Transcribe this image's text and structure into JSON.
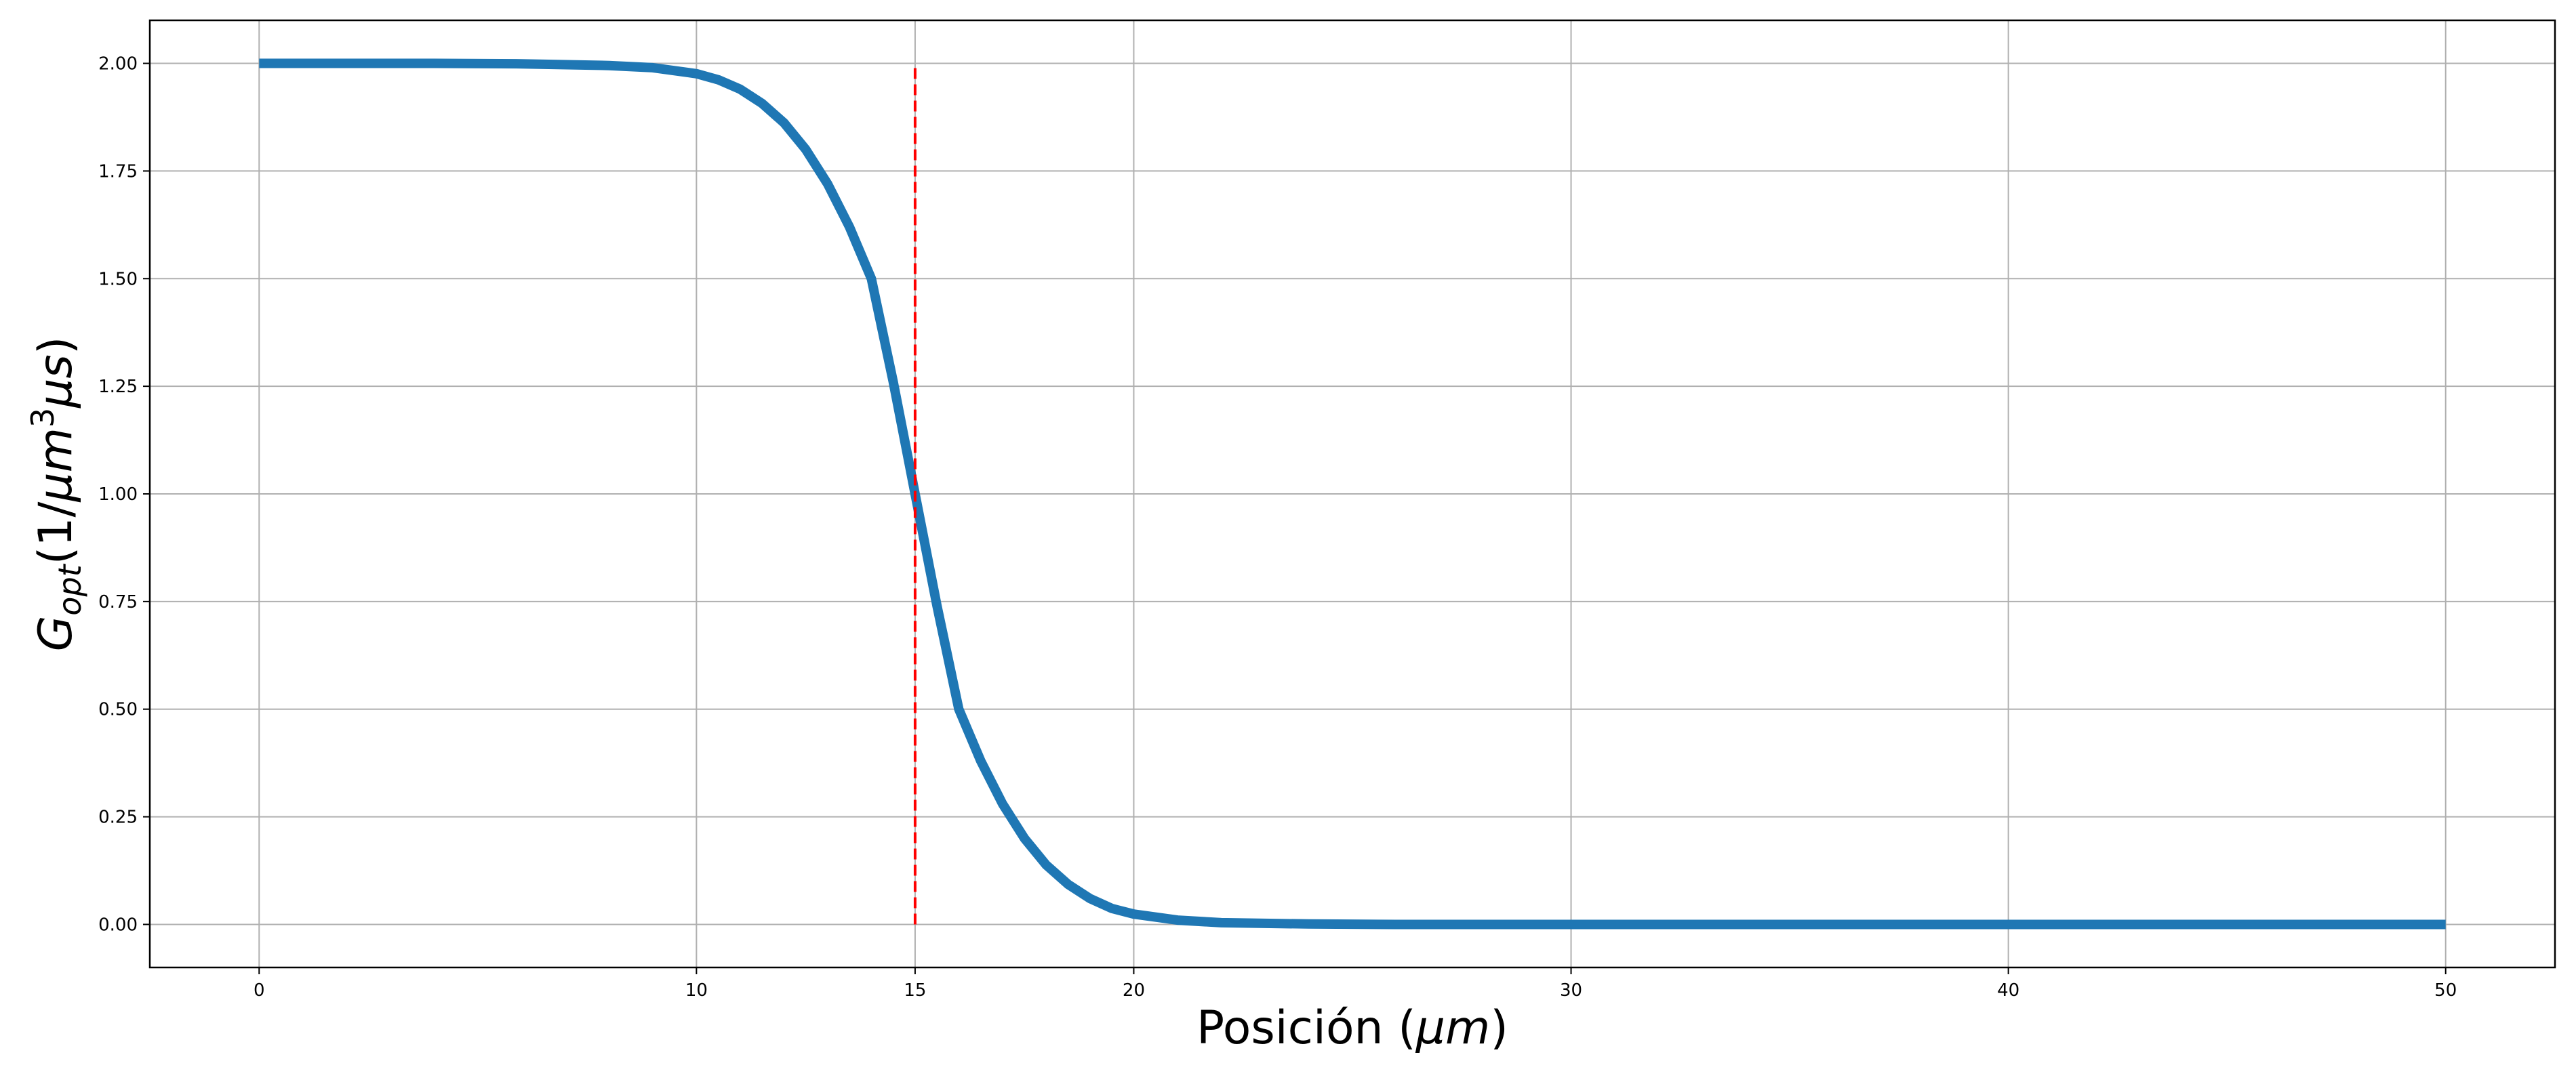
{
  "chart_data": {
    "type": "line",
    "title": "",
    "xlabel": {
      "prefix": "Posición (",
      "unit": "μm",
      "suffix": ")"
    },
    "ylabel": {
      "base": "G",
      "subscript": "opt",
      "unit_open": "(1/",
      "unit_var": "μm",
      "unit_sup": "3",
      "unit_var2": "μs",
      "unit_close": ")"
    },
    "xlim": [
      -2.5,
      52.5
    ],
    "ylim": [
      -0.1,
      2.1
    ],
    "xticks": [
      0,
      10,
      15,
      20,
      30,
      40,
      50
    ],
    "xtick_labels": [
      "0",
      "10",
      "15",
      "20",
      "30",
      "40",
      "50"
    ],
    "yticks": [
      0.0,
      0.25,
      0.5,
      0.75,
      1.0,
      1.25,
      1.5,
      1.75,
      2.0
    ],
    "ytick_labels": [
      "0.00",
      "0.25",
      "0.50",
      "0.75",
      "1.00",
      "1.25",
      "1.50",
      "1.75",
      "2.00"
    ],
    "grid": true,
    "series": [
      {
        "color": "#1f77b4",
        "x": [
          0,
          2,
          4,
          6,
          8,
          9,
          10,
          10.5,
          11,
          11.5,
          12,
          12.5,
          13,
          13.5,
          14,
          14.5,
          15,
          15.5,
          16,
          16.5,
          17,
          17.5,
          18,
          18.5,
          19,
          19.5,
          20,
          21,
          22,
          24,
          26,
          30,
          40,
          50
        ],
        "y": [
          2.0,
          2.0,
          2.0,
          1.999,
          1.995,
          1.99,
          1.976,
          1.962,
          1.94,
          1.907,
          1.862,
          1.8,
          1.72,
          1.62,
          1.5,
          1.26,
          1.0,
          0.74,
          0.5,
          0.38,
          0.28,
          0.2,
          0.138,
          0.093,
          0.06,
          0.037,
          0.024,
          0.01,
          0.004,
          0.001,
          0.0,
          0.0,
          0.0,
          0.0
        ]
      }
    ],
    "reference_lines": [
      {
        "x": 15,
        "y_range": [
          0,
          2
        ],
        "color": "#ff0000",
        "style": "dashed"
      }
    ]
  }
}
